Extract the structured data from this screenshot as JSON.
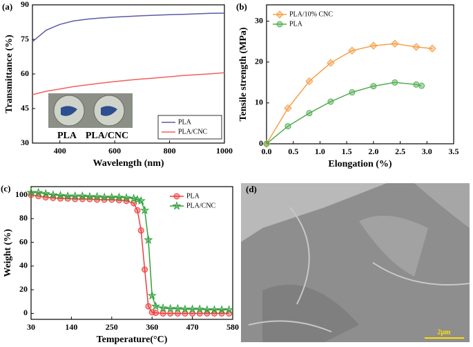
{
  "chart_data": [
    {
      "type": "line",
      "panel_label": "(a)",
      "x_label": "Wavelength (nm)",
      "y_label": "Transmittance (%)",
      "xlim": [
        300,
        1000
      ],
      "xticks": [
        400,
        600,
        800,
        1000
      ],
      "ylim": [
        30,
        90
      ],
      "yticks": [
        30,
        45,
        60,
        75,
        90
      ],
      "legend": "lower right",
      "annotations": [
        "PLA",
        "PLA/CNC"
      ],
      "x": [
        300,
        350,
        400,
        450,
        500,
        550,
        600,
        650,
        700,
        750,
        800,
        850,
        900,
        950,
        1000
      ],
      "series": [
        {
          "name": "PLA",
          "color": "#5b5aa6",
          "values": [
            74,
            79,
            81.5,
            83,
            83.8,
            84.3,
            84.7,
            85,
            85.3,
            85.5,
            85.7,
            85.9,
            86.1,
            86.3,
            86.4
          ]
        },
        {
          "name": "PLA/CNC",
          "color": "#f25f5c",
          "values": [
            51,
            52.5,
            53.5,
            54.5,
            55.3,
            56,
            56.7,
            57.3,
            57.8,
            58.3,
            58.8,
            59.3,
            59.7,
            60.1,
            60.5
          ]
        }
      ]
    },
    {
      "type": "line",
      "panel_label": "(b)",
      "x_label": "Elongation (%)",
      "y_label": "Tensile strength (MPa)",
      "xlim": [
        0,
        3.5
      ],
      "xticks": [
        {
          "value": 0,
          "label": "0.0"
        },
        0.5,
        {
          "value": 1,
          "label": "1.0"
        },
        1.5,
        {
          "value": 2,
          "label": "2.0"
        },
        2.5,
        {
          "value": 3,
          "label": "3.0"
        },
        3.5
      ],
      "ylim": [
        0,
        34
      ],
      "yticks": [
        0,
        10,
        20,
        30
      ],
      "legend": "upper left",
      "series": [
        {
          "name": "PLA/10% CNC",
          "color": "#f5a04a",
          "marker": "diamond",
          "x": [
            0,
            0.4,
            0.8,
            1.2,
            1.6,
            2.0,
            2.4,
            2.8,
            3.1
          ],
          "values": [
            0,
            8.7,
            15.3,
            19.8,
            22.8,
            24,
            24.5,
            23.7,
            23.3
          ]
        },
        {
          "name": "PLA",
          "color": "#4fae4f",
          "marker": "circle",
          "x": [
            0,
            0.4,
            0.8,
            1.2,
            1.6,
            2.0,
            2.4,
            2.8,
            2.9
          ],
          "values": [
            0,
            4.3,
            7.5,
            10.3,
            12.6,
            14.1,
            15,
            14.5,
            14.2
          ]
        }
      ]
    },
    {
      "type": "line",
      "panel_label": "(c)",
      "x_label": "Temperature(°C)",
      "y_label": "Weight (%)",
      "xlim": [
        30,
        580
      ],
      "xticks": [
        30,
        140,
        250,
        360,
        470,
        580
      ],
      "ylim": [
        -5,
        107
      ],
      "yticks": [
        0,
        20,
        40,
        60,
        80,
        100
      ],
      "legend": "upper right",
      "x": [
        30,
        50,
        70,
        90,
        110,
        130,
        150,
        170,
        190,
        210,
        230,
        250,
        270,
        290,
        310,
        320,
        330,
        340,
        350,
        360,
        370,
        390,
        410,
        430,
        450,
        470,
        490,
        510,
        530,
        550,
        570
      ],
      "series": [
        {
          "name": "PLA",
          "color": "#f03c3c",
          "marker": "circle",
          "values": [
            100,
            99,
            98,
            97.5,
            97,
            97,
            96.5,
            96.5,
            96.5,
            96,
            96,
            96,
            95.5,
            95,
            93,
            87,
            70,
            37,
            6,
            1,
            0.5,
            0,
            0,
            0,
            0,
            0,
            0,
            0,
            0,
            0,
            0
          ]
        },
        {
          "name": "PLA/CNC",
          "color": "#2fa03a",
          "marker": "star",
          "values": [
            102,
            102,
            101,
            100,
            99.5,
            99,
            99,
            99,
            98.5,
            98.5,
            98,
            98,
            98,
            97.5,
            97,
            96,
            95,
            87,
            62,
            15,
            6,
            4.5,
            4,
            4,
            3.5,
            3.5,
            3.5,
            3,
            3,
            3,
            3
          ]
        }
      ]
    }
  ],
  "image": {
    "panel_label": "(d)",
    "scale_bar": "2μm"
  }
}
